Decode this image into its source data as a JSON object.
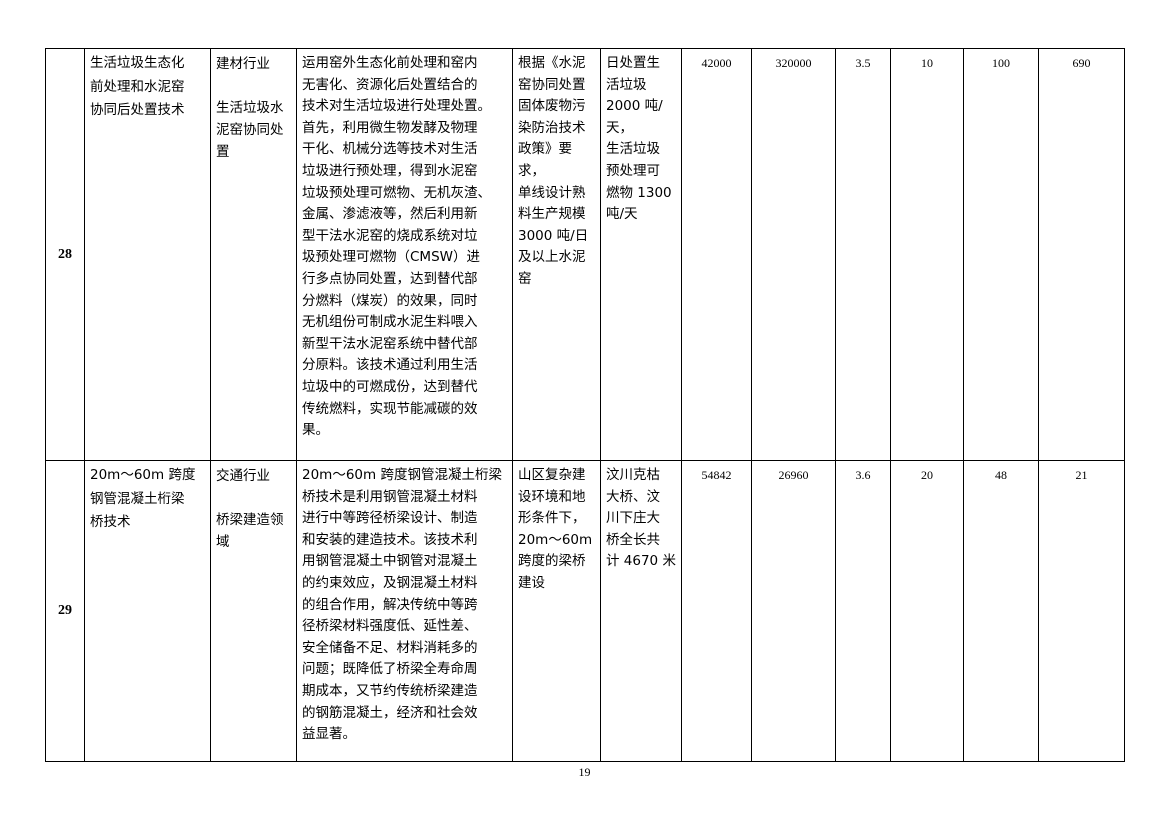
{
  "rows": [
    {
      "index": "28",
      "name": "生活垃圾生态化\n前处理和水泥窑\n协同后处置技术",
      "industry": "建材行业\n\n生活垃圾水\n泥窑协同处\n置",
      "description": "运用窑外生态化前处理和窑内\n无害化、资源化后处置结合的\n技术对生活垃圾进行处理处置。\n首先，利用微生物发酵及物理\n干化、机械分选等技术对生活\n垃圾进行预处理，得到水泥窑\n垃圾预处理可燃物、无机灰渣、\n金属、渗滤液等，然后利用新\n型干法水泥窑的烧成系统对垃\n圾预处理可燃物（CMSW）进\n行多点协同处置，达到替代部\n分燃料（煤炭）的效果，同时\n无机组份可制成水泥生料喂入\n新型干法水泥窑系统中替代部\n分原料。该技术通过利用生活\n垃圾中的可燃成份，达到替代\n传统燃料，实现节能减碳的效\n果。",
      "conditions": "根据《水泥\n窑协同处置\n固体废物污\n染防治技术\n政策》要求，\n单线设计熟\n料生产规模\n3000 吨/日\n及以上水泥\n窑",
      "case": "日处置生\n活垃圾\n2000 吨/天，\n生活垃圾\n预处理可\n燃物 1300\n吨/天",
      "values": [
        "42000",
        "320000",
        "3.5",
        "10",
        "100",
        "690"
      ]
    },
    {
      "index": "29",
      "name": "20m～60m 跨度\n钢管混凝土桁梁\n桥技术",
      "industry": "交通行业\n\n桥梁建造领\n域",
      "description": "20m～60m 跨度钢管混凝土桁梁\n桥技术是利用钢管混凝土材料\n进行中等跨径桥梁设计、制造\n和安装的建造技术。该技术利\n用钢管混凝土中钢管对混凝土\n的约束效应，及钢混凝土材料\n的组合作用，解决传统中等跨\n径桥梁材料强度低、延性差、\n安全储备不足、材料消耗多的\n问题；既降低了桥梁全寿命周\n期成本，又节约传统桥梁建造\n的钢筋混凝土，经济和社会效\n益显著。",
      "conditions": "山区复杂建\n设环境和地\n形条件下，\n20m～60m\n跨度的梁桥\n建设",
      "case": "汶川克枯\n大桥、汶\n川下庄大\n桥全长共\n计 4670 米",
      "values": [
        "54842",
        "26960",
        "3.6",
        "20",
        "48",
        "21"
      ]
    }
  ],
  "page_number": "19"
}
